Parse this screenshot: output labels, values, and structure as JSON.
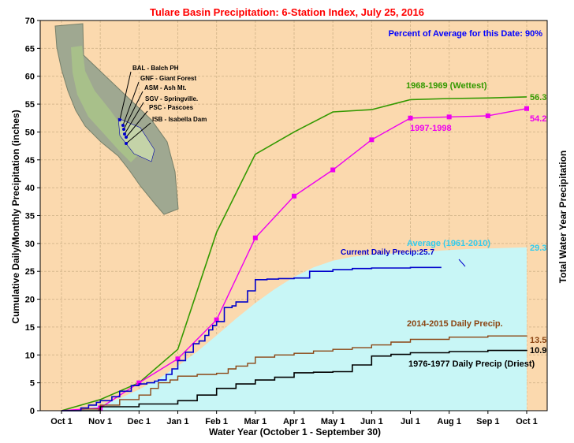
{
  "chart_data": {
    "type": "line",
    "title": "Tulare Basin Precipitation: 6-Station Index, July 25, 2016",
    "subtitle": "Percent of Average for this Date: 90%",
    "xlabel": "Water Year (October 1 - September 30)",
    "ylabel": "Cumulative Daily/Monthly Precipitation (inches)",
    "ylabel_right": "Total Water Year Precipitation",
    "ylim": [
      0,
      70
    ],
    "yticks": [
      0,
      5,
      10,
      15,
      20,
      25,
      30,
      35,
      40,
      45,
      50,
      55,
      60,
      65,
      70
    ],
    "xticks": [
      "Oct 1",
      "Nov 1",
      "Dec 1",
      "Jan 1",
      "Feb 1",
      "Mar 1",
      "Apr 1",
      "May 1",
      "Jun 1",
      "Jul 1",
      "Aug 1",
      "Sep 1",
      "Oct 1"
    ],
    "grid": true,
    "colors": {
      "plot_bg": "#fbd9ae",
      "grid": "#d7b98e",
      "average_fill": "#c8f6f6",
      "title": "#ff0000",
      "subtitle": "#0000ff",
      "wettest": "#339900",
      "y1997": "#ee00ee",
      "current": "#0000cc",
      "average": "#33ccee",
      "y2014": "#8b4513",
      "driest": "#000000"
    },
    "series": [
      {
        "name": "Average (1961-2010)",
        "kind": "area",
        "total_label": "29.3",
        "x": [
          0,
          0.5,
          1,
          1.5,
          2,
          2.5,
          3,
          3.5,
          4,
          4.5,
          5,
          5.5,
          6,
          6.5,
          7,
          7.5,
          8,
          8.5,
          9,
          9.5,
          10,
          10.5,
          11,
          11.5,
          12
        ],
        "values": [
          0,
          0.3,
          1.0,
          2.2,
          3.8,
          5.7,
          8.0,
          10.6,
          13.5,
          16.5,
          19.3,
          21.8,
          24.0,
          25.7,
          26.9,
          27.6,
          28.0,
          28.2,
          28.4,
          28.6,
          28.8,
          29.0,
          29.1,
          29.2,
          29.3
        ]
      },
      {
        "name": "1968-1969 (Wettest)",
        "kind": "line",
        "total_label": "56.3",
        "x": [
          0,
          1,
          2,
          3,
          4,
          5,
          6,
          7,
          8,
          9,
          10,
          11,
          12
        ],
        "values": [
          0,
          2.0,
          5.0,
          11.0,
          32.0,
          46.0,
          50.0,
          53.6,
          54.0,
          55.8,
          56.0,
          56.1,
          56.3
        ]
      },
      {
        "name": "1997-1998",
        "kind": "line-markers",
        "total_label": "54.2",
        "x": [
          0,
          1,
          2,
          3,
          4,
          5,
          6,
          7,
          8,
          9,
          10,
          11,
          12
        ],
        "values": [
          0,
          0.5,
          5.0,
          9.3,
          16.3,
          31.0,
          38.5,
          43.2,
          48.6,
          52.5,
          52.7,
          52.9,
          54.2
        ]
      },
      {
        "name": "Current Daily Precip",
        "kind": "step",
        "label": "Current Daily Precip:25.7",
        "x": [
          0,
          0.5,
          0.7,
          0.9,
          1.0,
          1.3,
          1.5,
          1.8,
          2.0,
          2.2,
          2.4,
          2.5,
          2.7,
          2.85,
          3.0,
          3.2,
          3.4,
          3.55,
          3.7,
          3.8,
          3.9,
          4.0,
          4.2,
          4.4,
          4.5,
          4.8,
          5.0,
          5.3,
          5.6,
          6.0,
          6.4,
          7.0,
          7.5,
          8.0,
          9.0,
          9.8
        ],
        "values": [
          0,
          0.5,
          1.0,
          1.5,
          1.8,
          2.5,
          3.5,
          4.5,
          4.8,
          5.0,
          5.3,
          5.5,
          6.5,
          7.5,
          9.0,
          10.5,
          12.0,
          12.5,
          13.5,
          14.5,
          15.3,
          16.0,
          18.5,
          18.8,
          19.5,
          21.5,
          23.5,
          23.6,
          23.7,
          23.8,
          25.0,
          25.3,
          25.5,
          25.6,
          25.7,
          25.7
        ]
      },
      {
        "name": "2014-2015 Daily Precip.",
        "kind": "step",
        "total_label": "13.5",
        "x": [
          0,
          0.5,
          1.0,
          1.5,
          2.0,
          2.3,
          2.5,
          2.8,
          3.0,
          3.5,
          4.0,
          4.3,
          4.5,
          4.8,
          5.0,
          5.5,
          6.0,
          6.5,
          7.0,
          7.5,
          8.0,
          8.5,
          9.0,
          10.0,
          11.0,
          12.0
        ],
        "values": [
          0,
          0.3,
          1.0,
          2.0,
          2.8,
          4.0,
          5.0,
          5.5,
          6.2,
          6.5,
          6.7,
          7.5,
          8.0,
          8.5,
          9.6,
          10.0,
          10.3,
          10.7,
          11.0,
          11.3,
          11.8,
          12.3,
          12.8,
          13.2,
          13.4,
          13.5
        ]
      },
      {
        "name": "1976-1977 Daily Precip (Driest)",
        "kind": "step",
        "total_label": "10.9",
        "x": [
          0,
          1.0,
          2.0,
          3.0,
          3.5,
          4.0,
          4.5,
          5.0,
          5.5,
          6.0,
          6.5,
          7.0,
          7.5,
          8.0,
          8.5,
          9.0,
          10.0,
          11.0,
          12.0
        ],
        "values": [
          0,
          0.7,
          1.2,
          1.8,
          2.8,
          4.0,
          4.8,
          5.5,
          6.0,
          6.8,
          6.9,
          7.0,
          8.2,
          9.8,
          10.1,
          10.4,
          10.6,
          10.8,
          10.9
        ]
      }
    ],
    "stations": [
      "BAL - Balch PH",
      "GNF - Giant Forest",
      "ASM - Ash Mt.",
      "SGV - Springville.",
      "PSC - Pascoes",
      "ISB - Isabella Dam"
    ]
  }
}
